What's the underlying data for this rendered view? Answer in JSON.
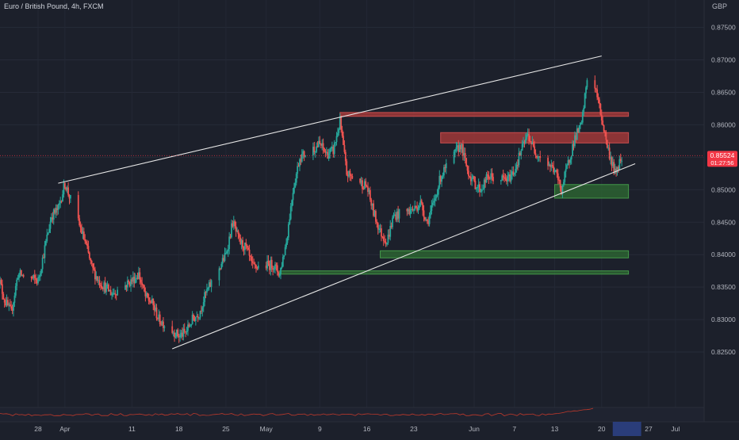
{
  "header": {
    "symbol_title": "Euro / British Pound, 4h, FXCM",
    "currency": "GBP"
  },
  "price_badge": {
    "price": "0.85524",
    "countdown": "01:27:56"
  },
  "colors": {
    "background": "#1c202b",
    "up_candle": "#26a69a",
    "down_candle": "#ef5350",
    "resistance_zone": "#b23b3b",
    "support_zone": "#2e6b33",
    "channel_line": "#e6e6e6",
    "price_line": "#f23645",
    "axis_text": "#b2b5be",
    "highlight_date_band": "#2a3d7a"
  },
  "chart_data": {
    "type": "candlestick",
    "title": "Euro / British Pound, 4h, FXCM",
    "price_unit": "GBP",
    "ylim": [
      0.82,
      0.878
    ],
    "y_ticks": [
      "0.82500",
      "0.83000",
      "0.83500",
      "0.84000",
      "0.84500",
      "0.85000",
      "0.85500",
      "0.86000",
      "0.86500",
      "0.87000",
      "0.87500"
    ],
    "x_ticks": [
      "28",
      "Apr",
      "11",
      "18",
      "25",
      "May",
      "9",
      "16",
      "23",
      "Jun",
      "7",
      "13",
      "20",
      "27",
      "Jul"
    ],
    "x_tick_dates": [
      "2022-03-28",
      "2022-04-01",
      "2022-04-11",
      "2022-04-18",
      "2022-04-25",
      "2022-05-01",
      "2022-05-09",
      "2022-05-16",
      "2022-05-23",
      "2022-06-01",
      "2022-06-07",
      "2022-06-13",
      "2022-06-20",
      "2022-06-27",
      "2022-07-01"
    ],
    "highlighted_x_range": [
      "2022-06-20",
      "2022-06-24"
    ],
    "price_path": [
      [
        "2022-03-22",
        0.837
      ],
      [
        "2022-03-23",
        0.833
      ],
      [
        "2022-03-24",
        0.831
      ],
      [
        "2022-03-25",
        0.837
      ],
      [
        "2022-03-28",
        0.836
      ],
      [
        "2022-03-29",
        0.841
      ],
      [
        "2022-03-30",
        0.846
      ],
      [
        "2022-03-31",
        0.847
      ],
      [
        "2022-04-01",
        0.851
      ],
      [
        "2022-04-04",
        0.842
      ],
      [
        "2022-04-05",
        0.838
      ],
      [
        "2022-04-06",
        0.836
      ],
      [
        "2022-04-07",
        0.835
      ],
      [
        "2022-04-08",
        0.834
      ],
      [
        "2022-04-11",
        0.836
      ],
      [
        "2022-04-12",
        0.837
      ],
      [
        "2022-04-13",
        0.8335
      ],
      [
        "2022-04-14",
        0.8325
      ],
      [
        "2022-04-15",
        0.83
      ],
      [
        "2022-04-18",
        0.8275
      ],
      [
        "2022-04-19",
        0.828
      ],
      [
        "2022-04-20",
        0.83
      ],
      [
        "2022-04-21",
        0.831
      ],
      [
        "2022-04-22",
        0.834
      ],
      [
        "2022-04-25",
        0.84
      ],
      [
        "2022-04-26",
        0.845
      ],
      [
        "2022-04-27",
        0.842
      ],
      [
        "2022-04-28",
        0.841
      ],
      [
        "2022-04-29",
        0.838
      ],
      [
        "2022-05-02",
        0.8385
      ],
      [
        "2022-05-03",
        0.837
      ],
      [
        "2022-05-04",
        0.842
      ],
      [
        "2022-05-05",
        0.85
      ],
      [
        "2022-05-06",
        0.855
      ],
      [
        "2022-05-09",
        0.857
      ],
      [
        "2022-05-10",
        0.8555
      ],
      [
        "2022-05-11",
        0.856
      ],
      [
        "2022-05-12",
        0.8605
      ],
      [
        "2022-05-13",
        0.8525
      ],
      [
        "2022-05-16",
        0.8505
      ],
      [
        "2022-05-17",
        0.8465
      ],
      [
        "2022-05-18",
        0.8435
      ],
      [
        "2022-05-19",
        0.842
      ],
      [
        "2022-05-20",
        0.846
      ],
      [
        "2022-05-23",
        0.847
      ],
      [
        "2022-05-24",
        0.848
      ],
      [
        "2022-05-25",
        0.845
      ],
      [
        "2022-05-26",
        0.848
      ],
      [
        "2022-05-27",
        0.852
      ],
      [
        "2022-05-30",
        0.857
      ],
      [
        "2022-05-31",
        0.853
      ],
      [
        "2022-06-01",
        0.851
      ],
      [
        "2022-06-02",
        0.85
      ],
      [
        "2022-06-03",
        0.852
      ],
      [
        "2022-06-06",
        0.8515
      ],
      [
        "2022-06-07",
        0.853
      ],
      [
        "2022-06-08",
        0.856
      ],
      [
        "2022-06-09",
        0.8585
      ],
      [
        "2022-06-10",
        0.856
      ],
      [
        "2022-06-13",
        0.853
      ],
      [
        "2022-06-14",
        0.85
      ],
      [
        "2022-06-15",
        0.854
      ],
      [
        "2022-06-16",
        0.858
      ],
      [
        "2022-06-17",
        0.86
      ],
      [
        "2022-06-18",
        0.8685
      ],
      [
        "2022-06-19",
        0.866
      ],
      [
        "2022-06-20",
        0.861
      ],
      [
        "2022-06-21",
        0.856
      ],
      [
        "2022-06-22",
        0.8525
      ],
      [
        "2022-06-23",
        0.8552
      ]
    ],
    "current_price": 0.85524,
    "channel": {
      "upper": [
        [
          "2022-03-31",
          0.851
        ],
        [
          "2022-06-20",
          0.8706
        ]
      ],
      "lower": [
        [
          "2022-04-17",
          0.8255
        ],
        [
          "2022-06-25",
          0.854
        ]
      ]
    },
    "zones": [
      {
        "kind": "resistance",
        "from": "2022-05-12",
        "to": "2022-06-24",
        "y0": 0.8613,
        "y1": 0.8619
      },
      {
        "kind": "resistance",
        "from": "2022-05-27",
        "to": "2022-06-24",
        "y0": 0.8572,
        "y1": 0.8588
      },
      {
        "kind": "support",
        "from": "2022-06-13",
        "to": "2022-06-24",
        "y0": 0.8487,
        "y1": 0.8508
      },
      {
        "kind": "support",
        "from": "2022-05-18",
        "to": "2022-06-24",
        "y0": 0.8395,
        "y1": 0.8406
      },
      {
        "kind": "support",
        "from": "2022-05-03",
        "to": "2022-06-24",
        "y0": 0.837,
        "y1": 0.8375
      }
    ]
  }
}
